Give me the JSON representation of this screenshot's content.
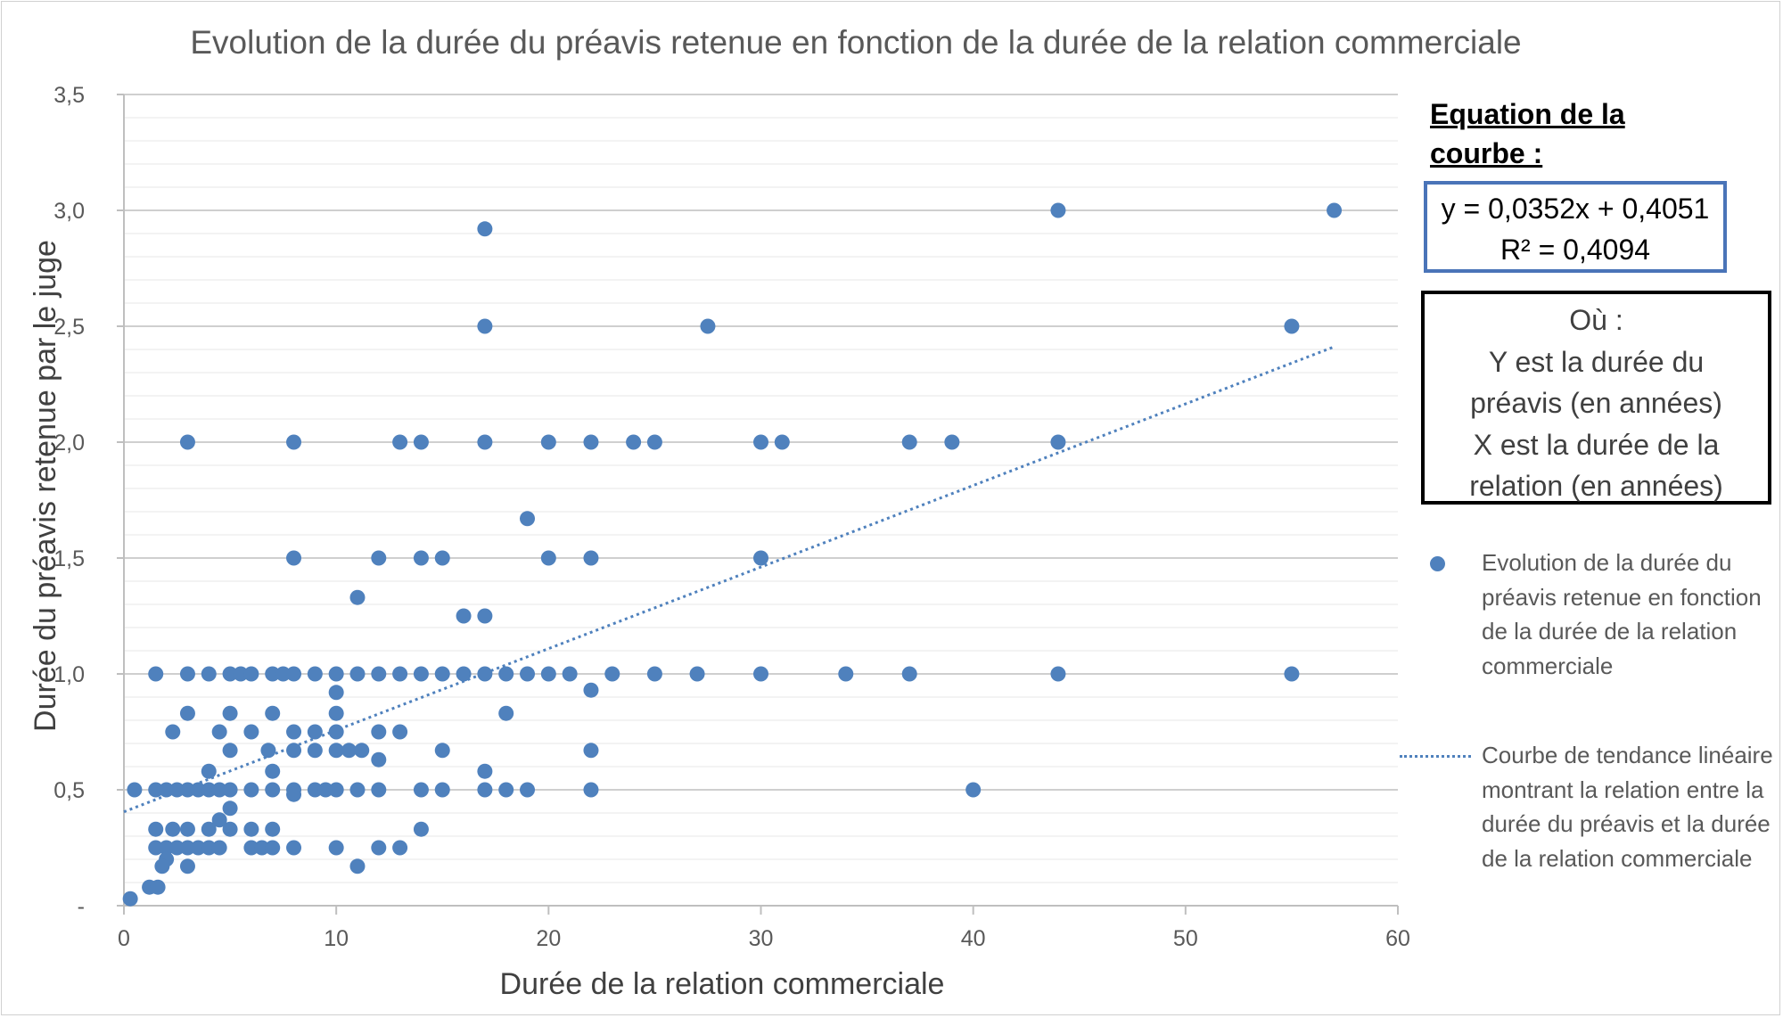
{
  "chart_data": {
    "type": "scatter",
    "title": "Evolution de la durée du préavis retenue en fonction de la durée de la relation commerciale",
    "xlabel": "Durée de la relation commerciale",
    "ylabel": "Durée du préavis retenue par le juge",
    "xlim": [
      0,
      60
    ],
    "ylim": [
      0,
      3.5
    ],
    "x_ticks": [
      "0",
      "10",
      "20",
      "30",
      "40",
      "50",
      "60"
    ],
    "y_ticks": [
      "-",
      "0,5",
      "1,0",
      "1,5",
      "2,0",
      "2,5",
      "3,0",
      "3,5"
    ],
    "grid": "horizontal",
    "colors": {
      "points": "#4f81bd",
      "trend": "#4f81bd",
      "grid": "#d9d9d9"
    },
    "series": [
      {
        "name": "Evolution de la durée du préavis retenue en fonction de la durée de la relation commerciale",
        "points": [
          [
            17,
            2.92
          ],
          [
            44,
            3.0
          ],
          [
            57,
            3.0
          ],
          [
            17,
            2.5
          ],
          [
            27.5,
            2.5
          ],
          [
            55,
            2.5
          ],
          [
            3,
            2.0
          ],
          [
            8,
            2.0
          ],
          [
            13,
            2.0
          ],
          [
            14,
            2.0
          ],
          [
            17,
            2.0
          ],
          [
            20,
            2.0
          ],
          [
            22,
            2.0
          ],
          [
            24,
            2.0
          ],
          [
            25,
            2.0
          ],
          [
            30,
            2.0
          ],
          [
            31,
            2.0
          ],
          [
            37,
            2.0
          ],
          [
            39,
            2.0
          ],
          [
            44,
            2.0
          ],
          [
            19,
            1.67
          ],
          [
            8,
            1.5
          ],
          [
            12,
            1.5
          ],
          [
            14,
            1.5
          ],
          [
            15,
            1.5
          ],
          [
            20,
            1.5
          ],
          [
            22,
            1.5
          ],
          [
            30,
            1.5
          ],
          [
            11,
            1.33
          ],
          [
            16,
            1.25
          ],
          [
            17,
            1.25
          ],
          [
            1.5,
            1.0
          ],
          [
            3,
            1.0
          ],
          [
            4,
            1.0
          ],
          [
            5,
            1.0
          ],
          [
            5.5,
            1.0
          ],
          [
            6,
            1.0
          ],
          [
            7,
            1.0
          ],
          [
            7.5,
            1.0
          ],
          [
            8,
            1.0
          ],
          [
            9,
            1.0
          ],
          [
            10,
            1.0
          ],
          [
            11,
            1.0
          ],
          [
            12,
            1.0
          ],
          [
            13,
            1.0
          ],
          [
            14,
            1.0
          ],
          [
            15,
            1.0
          ],
          [
            16,
            1.0
          ],
          [
            17,
            1.0
          ],
          [
            18,
            1.0
          ],
          [
            19,
            1.0
          ],
          [
            20,
            1.0
          ],
          [
            21,
            1.0
          ],
          [
            23,
            1.0
          ],
          [
            25,
            1.0
          ],
          [
            27,
            1.0
          ],
          [
            30,
            1.0
          ],
          [
            34,
            1.0
          ],
          [
            37,
            1.0
          ],
          [
            44,
            1.0
          ],
          [
            55,
            1.0
          ],
          [
            22,
            0.93
          ],
          [
            10,
            0.92
          ],
          [
            3,
            0.83
          ],
          [
            5,
            0.83
          ],
          [
            7,
            0.83
          ],
          [
            10,
            0.83
          ],
          [
            18,
            0.83
          ],
          [
            2.3,
            0.75
          ],
          [
            4.5,
            0.75
          ],
          [
            6,
            0.75
          ],
          [
            8,
            0.75
          ],
          [
            9,
            0.75
          ],
          [
            10,
            0.75
          ],
          [
            12,
            0.75
          ],
          [
            13,
            0.75
          ],
          [
            5,
            0.67
          ],
          [
            6.8,
            0.67
          ],
          [
            8,
            0.67
          ],
          [
            9,
            0.67
          ],
          [
            10,
            0.67
          ],
          [
            10.6,
            0.67
          ],
          [
            11.2,
            0.67
          ],
          [
            15,
            0.67
          ],
          [
            22,
            0.67
          ],
          [
            12,
            0.63
          ],
          [
            4,
            0.58
          ],
          [
            7,
            0.58
          ],
          [
            17,
            0.58
          ],
          [
            0.5,
            0.5
          ],
          [
            1.5,
            0.5
          ],
          [
            2,
            0.5
          ],
          [
            2.5,
            0.5
          ],
          [
            3,
            0.5
          ],
          [
            3.5,
            0.5
          ],
          [
            4,
            0.5
          ],
          [
            4.5,
            0.5
          ],
          [
            5,
            0.5
          ],
          [
            6,
            0.5
          ],
          [
            7,
            0.5
          ],
          [
            8,
            0.5
          ],
          [
            9,
            0.5
          ],
          [
            9.5,
            0.5
          ],
          [
            10,
            0.5
          ],
          [
            11,
            0.5
          ],
          [
            12,
            0.5
          ],
          [
            14,
            0.5
          ],
          [
            15,
            0.5
          ],
          [
            17,
            0.5
          ],
          [
            18,
            0.5
          ],
          [
            19,
            0.5
          ],
          [
            22,
            0.5
          ],
          [
            40,
            0.5
          ],
          [
            8,
            0.48
          ],
          [
            5,
            0.42
          ],
          [
            4.5,
            0.37
          ],
          [
            1.5,
            0.33
          ],
          [
            2.3,
            0.33
          ],
          [
            3,
            0.33
          ],
          [
            4,
            0.33
          ],
          [
            5,
            0.33
          ],
          [
            6,
            0.33
          ],
          [
            7,
            0.33
          ],
          [
            14,
            0.33
          ],
          [
            1.5,
            0.25
          ],
          [
            2,
            0.25
          ],
          [
            2.5,
            0.25
          ],
          [
            3,
            0.25
          ],
          [
            3.5,
            0.25
          ],
          [
            4,
            0.25
          ],
          [
            4.5,
            0.25
          ],
          [
            6,
            0.25
          ],
          [
            6.5,
            0.25
          ],
          [
            7,
            0.25
          ],
          [
            8,
            0.25
          ],
          [
            10,
            0.25
          ],
          [
            12,
            0.25
          ],
          [
            13,
            0.25
          ],
          [
            2,
            0.2
          ],
          [
            1.8,
            0.17
          ],
          [
            3,
            0.17
          ],
          [
            11,
            0.17
          ],
          [
            1.2,
            0.08
          ],
          [
            1.6,
            0.08
          ],
          [
            0.3,
            0.03
          ]
        ]
      },
      {
        "name": "Courbe de tendance linéaire montrant la relation entre la durée du préavis et la durée de la relation commerciale",
        "type": "linear-trend",
        "slope": 0.0352,
        "intercept": 0.4051,
        "x_range": [
          0,
          57
        ]
      }
    ],
    "equation_heading": "Equation de la courbe :",
    "equation": "y = 0,0352x + 0,4051",
    "r_squared": "R² = 0,4094",
    "explanation_lines": [
      "Où :",
      "Y est la durée du",
      "préavis (en années)",
      "X est la durée de la",
      "relation (en années)"
    ],
    "legend": [
      {
        "label": "Evolution de la durée du préavis retenue en fonction de la durée de la relation commerciale",
        "marker": "dot"
      },
      {
        "label": "Courbe de tendance linéaire montrant la relation entre la durée du préavis et la durée de la relation commerciale",
        "marker": "dotted-line"
      }
    ]
  }
}
